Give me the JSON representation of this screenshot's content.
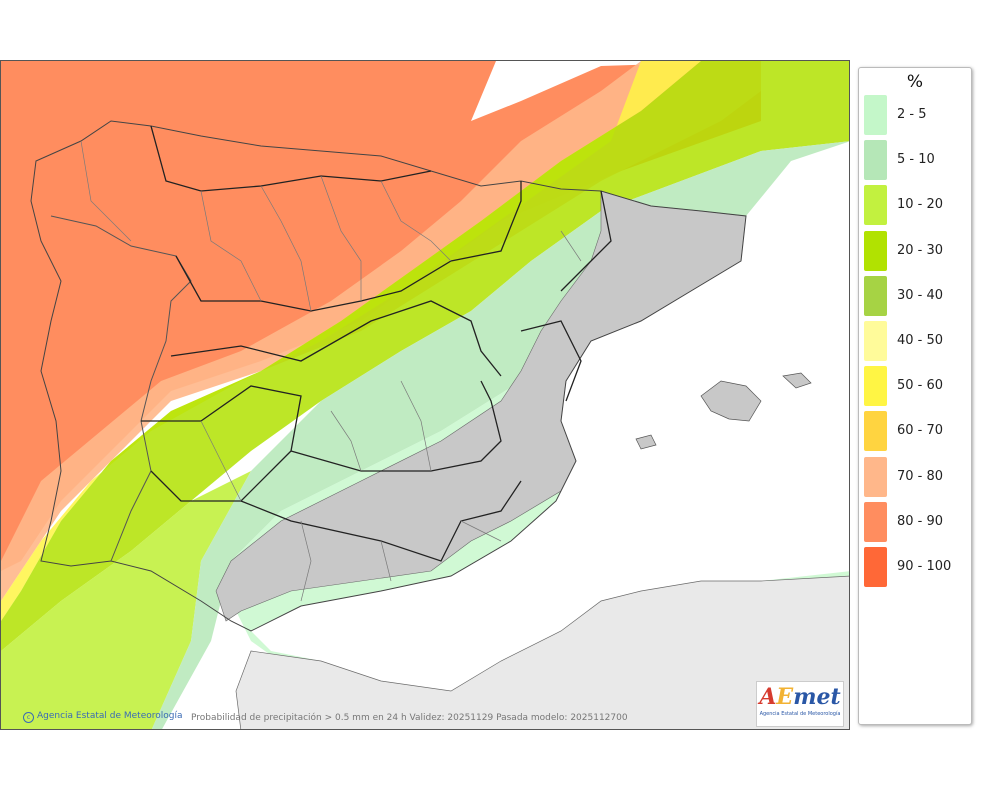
{
  "legend": {
    "unit": "%",
    "items": [
      {
        "label": "2 - 5",
        "color": "#c4f7c9"
      },
      {
        "label": "5 - 10",
        "color": "#b5e7b7"
      },
      {
        "label": "10 - 20",
        "color": "#c2f13f"
      },
      {
        "label": "20 - 30",
        "color": "#b1e201"
      },
      {
        "label": "30 - 40",
        "color": "#a6d344"
      },
      {
        "label": "40 - 50",
        "color": "#fffb9a"
      },
      {
        "label": "50 - 60",
        "color": "#fff544"
      },
      {
        "label": "60 - 70",
        "color": "#ffd440"
      },
      {
        "label": "70 - 80",
        "color": "#ffb78a"
      },
      {
        "label": "80 - 90",
        "color": "#ff8d5f"
      },
      {
        "label": "90 - 100",
        "color": "#ff6837"
      }
    ]
  },
  "map": {
    "credit": "Agencia Estatal de Meteorología",
    "caption": "Probabilidad de precipitación > 0.5 mm en 24 h Validez: 20251129 Pasada modelo: 2025112700",
    "logo": {
      "word_a": "A",
      "word_e": "E",
      "word_met": "met",
      "sub": "Agencia Estatal de Meteorología"
    },
    "colors": {
      "sea_high": "#ff8d5f",
      "land_high": "#ff6837",
      "no_data_land": "#e6e6e6",
      "no_data_sea": "#ffffff",
      "africa": "#e9e9e9"
    }
  }
}
